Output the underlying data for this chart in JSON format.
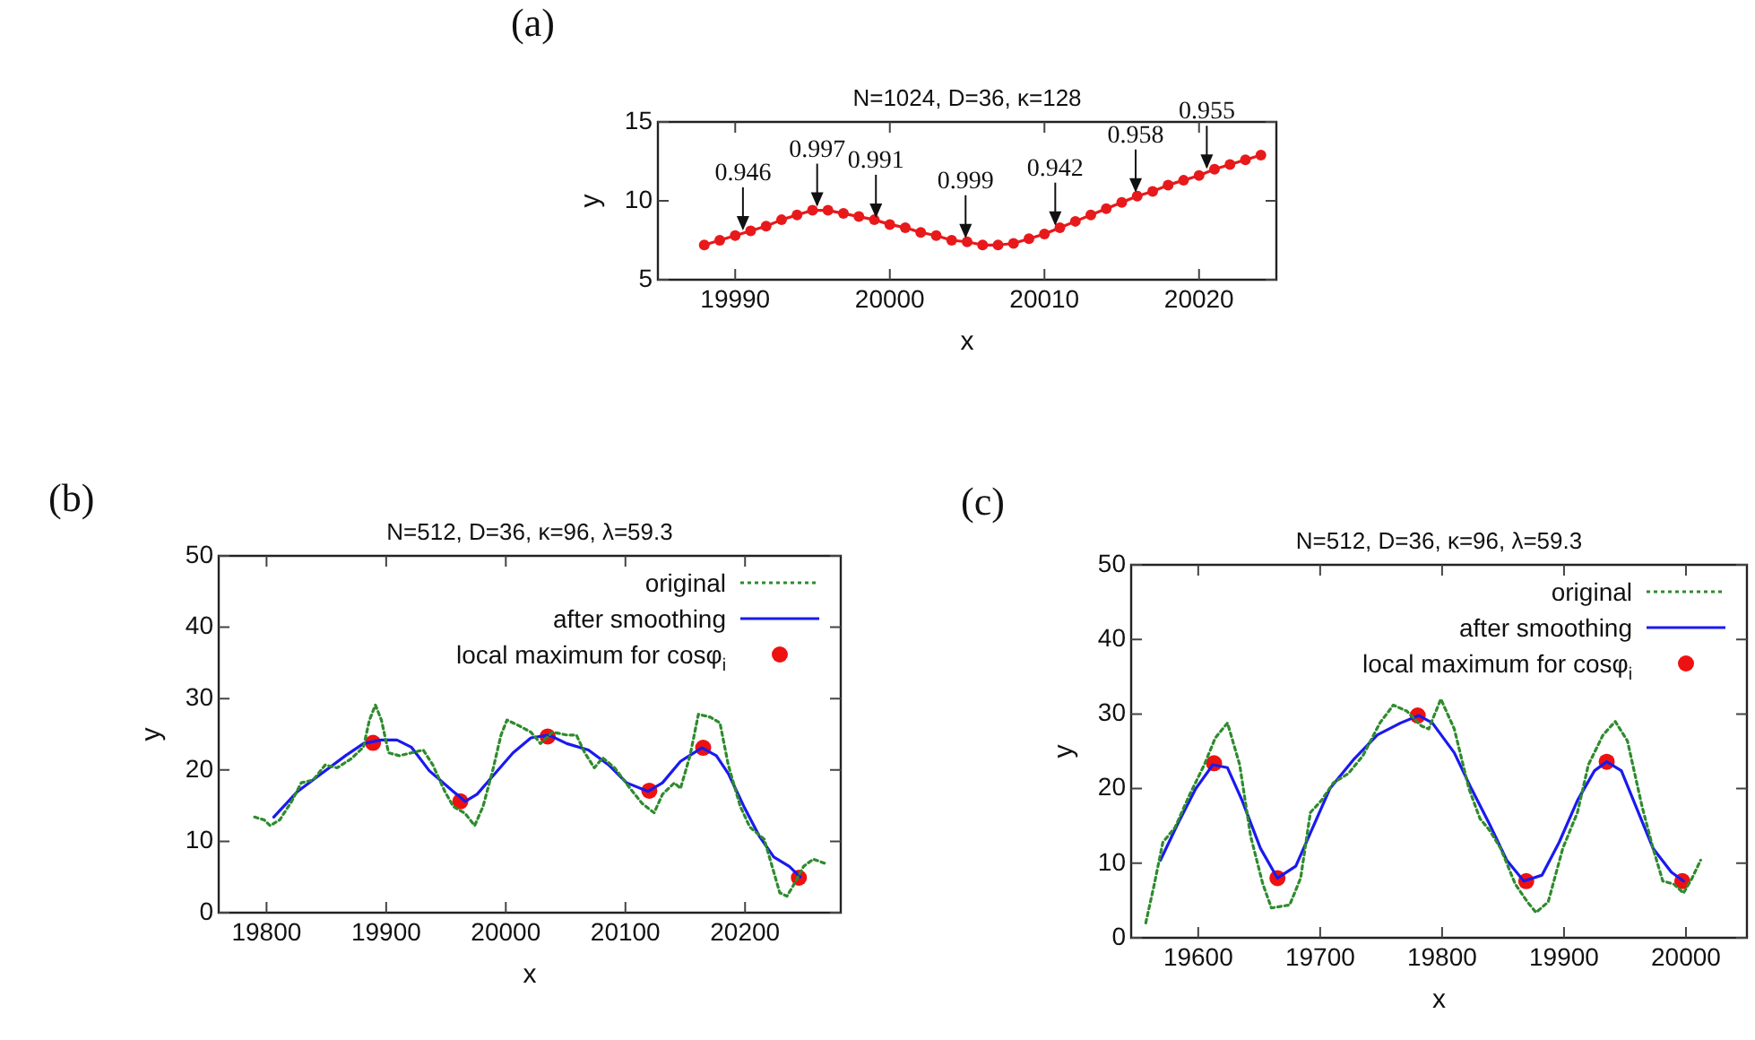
{
  "chart_data": [
    {
      "type": "line",
      "title": "N=1024, D=36, κ=128",
      "xlabel": "x",
      "ylabel": "y",
      "xlim": [
        19985,
        20025
      ],
      "xticks": [
        19990,
        20000,
        20010,
        20020
      ],
      "ylim": [
        5,
        15
      ],
      "yticks": [
        5,
        10,
        15
      ],
      "grid": false,
      "legend": false,
      "annotations": [
        "(a)",
        {
          "text": "0.946",
          "x": 19990.5,
          "y": 7.9
        },
        {
          "text": "0.997",
          "x": 19995.3,
          "y": 9.4
        },
        {
          "text": "0.991",
          "x": 19999.1,
          "y": 8.7
        },
        {
          "text": "0.999",
          "x": 20004.9,
          "y": 7.4
        },
        {
          "text": "0.942",
          "x": 20010.7,
          "y": 8.2
        },
        {
          "text": "0.958",
          "x": 20015.9,
          "y": 10.3
        },
        {
          "text": "0.955",
          "x": 20020.5,
          "y": 11.8
        }
      ],
      "series": [
        {
          "color": "#e8191b",
          "marker": "circle",
          "line_style": "solid",
          "x": [
            19988,
            19989,
            19990,
            19991,
            19992,
            19993,
            19994,
            19995,
            19996,
            19997,
            19998,
            19999,
            20000,
            20001,
            20002,
            20003,
            20004,
            20005,
            20006,
            20007,
            20008,
            20009,
            20010,
            20011,
            20012,
            20013,
            20014,
            20015,
            20016,
            20017,
            20018,
            20019,
            20020,
            20021,
            20022,
            20023,
            20024
          ],
          "values": [
            7.2,
            7.5,
            7.8,
            8.1,
            8.4,
            8.8,
            9.1,
            9.4,
            9.4,
            9.2,
            9.0,
            8.8,
            8.5,
            8.3,
            8.0,
            7.8,
            7.5,
            7.4,
            7.2,
            7.2,
            7.3,
            7.6,
            7.9,
            8.3,
            8.7,
            9.1,
            9.5,
            9.9,
            10.3,
            10.6,
            11.0,
            11.3,
            11.6,
            12.0,
            12.3,
            12.6,
            12.9
          ]
        }
      ]
    },
    {
      "type": "line",
      "title": "N=512, D=36, κ=96, λ=59.3",
      "xlabel": "x",
      "ylabel": "y",
      "xlim": [
        19760,
        20280
      ],
      "xticks": [
        19800,
        19900,
        20000,
        20100,
        20200
      ],
      "ylim": [
        0,
        50
      ],
      "yticks": [
        0,
        10,
        20,
        30,
        40,
        50
      ],
      "grid": false,
      "legend": "top right",
      "annotations": [
        "(b)"
      ],
      "series": [
        {
          "name": "original",
          "color": "#2e8b2e",
          "marker": "none",
          "line_style": "dotted",
          "x": [
            19790,
            19798,
            19803,
            19811,
            19821,
            19829,
            19839,
            19849,
            19859,
            19871,
            19881,
            19886,
            19891,
            19896,
            19902,
            19911,
            19921,
            19931,
            19939,
            19949,
            19956,
            19966,
            19974,
            19981,
            19989,
            19996,
            20001,
            20011,
            20021,
            20029,
            20039,
            20051,
            20059,
            20066,
            20074,
            20081,
            20091,
            20104,
            20114,
            20124,
            20131,
            20141,
            20146,
            20154,
            20161,
            20171,
            20179,
            20186,
            20196,
            20204,
            20216,
            20224,
            20229,
            20235,
            20241,
            20249,
            20257,
            20267
          ],
          "values": [
            13.4,
            13.0,
            12.2,
            13.0,
            15.6,
            18.2,
            18.6,
            20.7,
            20.3,
            21.6,
            23.2,
            27.0,
            29.1,
            27.0,
            22.4,
            22.0,
            22.4,
            22.8,
            20.7,
            17.0,
            14.9,
            13.9,
            12.2,
            14.9,
            19.9,
            24.9,
            27.0,
            26.2,
            25.3,
            23.7,
            25.3,
            24.9,
            24.9,
            22.4,
            20.3,
            21.7,
            20.3,
            17.4,
            15.3,
            14.0,
            16.6,
            18.2,
            17.4,
            22.0,
            27.8,
            27.4,
            26.6,
            20.7,
            14.9,
            12.0,
            10.3,
            5.7,
            2.8,
            2.3,
            4.0,
            6.5,
            7.5,
            6.9
          ]
        },
        {
          "name": "after smoothing",
          "color": "#1a1aee",
          "marker": "none",
          "line_style": "solid",
          "x": [
            19806,
            19826,
            19846,
            19866,
            19881,
            19896,
            19909,
            19921,
            19936,
            19956,
            19966,
            19976,
            19991,
            20006,
            20021,
            20036,
            20051,
            20069,
            20086,
            20101,
            20119,
            20131,
            20146,
            20164,
            20176,
            20186,
            20199,
            20212,
            20224,
            20237,
            20246
          ],
          "values": [
            13.4,
            17.0,
            19.5,
            22.0,
            23.7,
            24.2,
            24.2,
            23.2,
            19.9,
            17.0,
            15.6,
            16.6,
            19.5,
            22.4,
            24.5,
            24.9,
            23.7,
            22.8,
            20.7,
            18.2,
            17.0,
            18.2,
            21.2,
            23.1,
            22.0,
            19.5,
            14.9,
            10.7,
            7.8,
            6.5,
            5.0
          ]
        },
        {
          "name": "local maximum for cosφ$_{i}$",
          "type": "scatter",
          "color": "#ee1111",
          "marker": "circle",
          "x": [
            19889,
            19962,
            20035,
            20120,
            20165,
            20245
          ],
          "values": [
            23.8,
            15.6,
            24.7,
            17.1,
            23.1,
            4.9
          ]
        }
      ]
    },
    {
      "type": "line",
      "title": "N=512, D=36, κ=96, λ=59.3",
      "xlabel": "x",
      "ylabel": "y",
      "xlim": [
        19545,
        20050
      ],
      "xticks": [
        19600,
        19700,
        19800,
        19900,
        20000
      ],
      "ylim": [
        0,
        50
      ],
      "yticks": [
        0,
        10,
        20,
        30,
        40,
        50
      ],
      "grid": false,
      "legend": "top right",
      "annotations": [
        "(c)"
      ],
      "series": [
        {
          "name": "original",
          "color": "#2e8b2e",
          "marker": "none",
          "line_style": "dotted",
          "x": [
            19557,
            19564,
            19571,
            19581,
            19593,
            19605,
            19614,
            19624,
            19634,
            19643,
            19653,
            19660,
            19675,
            19684,
            19692,
            19701,
            19711,
            19723,
            19735,
            19749,
            19760,
            19771,
            19783,
            19789,
            19799,
            19810,
            19822,
            19831,
            19839,
            19848,
            19860,
            19870,
            19877,
            19887,
            19899,
            19911,
            19920,
            19932,
            19942,
            19952,
            19964,
            19973,
            19981,
            19990,
            19998,
            20005,
            20012
          ],
          "values": [
            2.0,
            7.2,
            12.8,
            14.8,
            19.2,
            23.2,
            26.8,
            28.8,
            23.2,
            13.6,
            7.2,
            4.0,
            4.4,
            8.0,
            16.8,
            18.4,
            20.8,
            22.0,
            24.4,
            28.8,
            31.2,
            30.4,
            28.4,
            28.0,
            32.0,
            28.0,
            20.0,
            16.0,
            14.4,
            12.0,
            7.2,
            4.8,
            3.4,
            4.8,
            12.0,
            16.8,
            23.2,
            27.2,
            29.0,
            26.4,
            17.6,
            12.0,
            7.6,
            7.2,
            6.0,
            8.0,
            10.4
          ]
        },
        {
          "name": "after smoothing",
          "color": "#1a1aee",
          "marker": "none",
          "line_style": "solid",
          "x": [
            19569,
            19583,
            19598,
            19612,
            19624,
            19636,
            19651,
            19665,
            19680,
            19694,
            19708,
            19728,
            19747,
            19766,
            19781,
            19792,
            19810,
            19824,
            19839,
            19853,
            19867,
            19882,
            19896,
            19911,
            19925,
            19935,
            19947,
            19959,
            19973,
            19988,
            19998
          ],
          "values": [
            10.4,
            15.2,
            20.0,
            23.2,
            22.8,
            18.4,
            12.0,
            8.0,
            9.6,
            14.8,
            20.0,
            24.0,
            27.2,
            28.8,
            29.8,
            28.8,
            24.8,
            20.0,
            15.2,
            10.4,
            7.6,
            8.4,
            12.8,
            18.4,
            22.4,
            23.6,
            22.4,
            17.6,
            12.0,
            8.8,
            7.6
          ]
        },
        {
          "name": "local maximum for cosφ$_{i}$",
          "type": "scatter",
          "color": "#ee1111",
          "marker": "circle",
          "x": [
            19613,
            19665,
            19780,
            19869,
            19935,
            19997
          ],
          "values": [
            23.4,
            8.0,
            29.8,
            7.6,
            23.6,
            7.6
          ]
        }
      ]
    }
  ]
}
